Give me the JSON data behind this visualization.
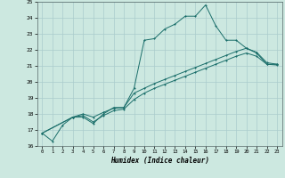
{
  "xlabel": "Humidex (Indice chaleur)",
  "bg_color": "#cce8e0",
  "grid_color": "#aacccc",
  "line_color": "#1a6e6a",
  "xlim": [
    -0.5,
    23.5
  ],
  "ylim": [
    16,
    25
  ],
  "xticks": [
    0,
    1,
    2,
    3,
    4,
    5,
    6,
    7,
    8,
    9,
    10,
    11,
    12,
    13,
    14,
    15,
    16,
    17,
    18,
    19,
    20,
    21,
    22,
    23
  ],
  "yticks": [
    16,
    17,
    18,
    19,
    20,
    21,
    22,
    23,
    24,
    25
  ],
  "series1_x": [
    0,
    1,
    2,
    3,
    4,
    5,
    6,
    7,
    8,
    9,
    10,
    11,
    12,
    13,
    14,
    15,
    16,
    17,
    18,
    19,
    20,
    21,
    22,
    23
  ],
  "series1_y": [
    16.8,
    16.3,
    17.3,
    17.8,
    17.8,
    17.4,
    18.0,
    18.4,
    18.4,
    19.6,
    22.6,
    22.7,
    23.3,
    23.6,
    24.1,
    24.1,
    24.8,
    23.5,
    22.6,
    22.6,
    22.1,
    21.8,
    21.1,
    21.1
  ],
  "series2_x": [
    0,
    3,
    4,
    5,
    6,
    7,
    8,
    9,
    10,
    11,
    12,
    13,
    14,
    15,
    16,
    17,
    18,
    19,
    20,
    21,
    22,
    23
  ],
  "series2_y": [
    16.8,
    17.8,
    18.0,
    17.8,
    18.1,
    18.35,
    18.4,
    19.3,
    19.6,
    19.9,
    20.15,
    20.4,
    20.65,
    20.9,
    21.15,
    21.4,
    21.65,
    21.9,
    22.1,
    21.85,
    21.2,
    21.1
  ],
  "series3_x": [
    0,
    3,
    4,
    5,
    6,
    7,
    8,
    9,
    10,
    11,
    12,
    13,
    14,
    15,
    16,
    17,
    18,
    19,
    20,
    21,
    22,
    23
  ],
  "series3_y": [
    16.8,
    17.8,
    17.9,
    17.5,
    17.9,
    18.2,
    18.3,
    18.9,
    19.3,
    19.6,
    19.85,
    20.1,
    20.35,
    20.6,
    20.85,
    21.1,
    21.35,
    21.6,
    21.8,
    21.6,
    21.1,
    21.05
  ]
}
